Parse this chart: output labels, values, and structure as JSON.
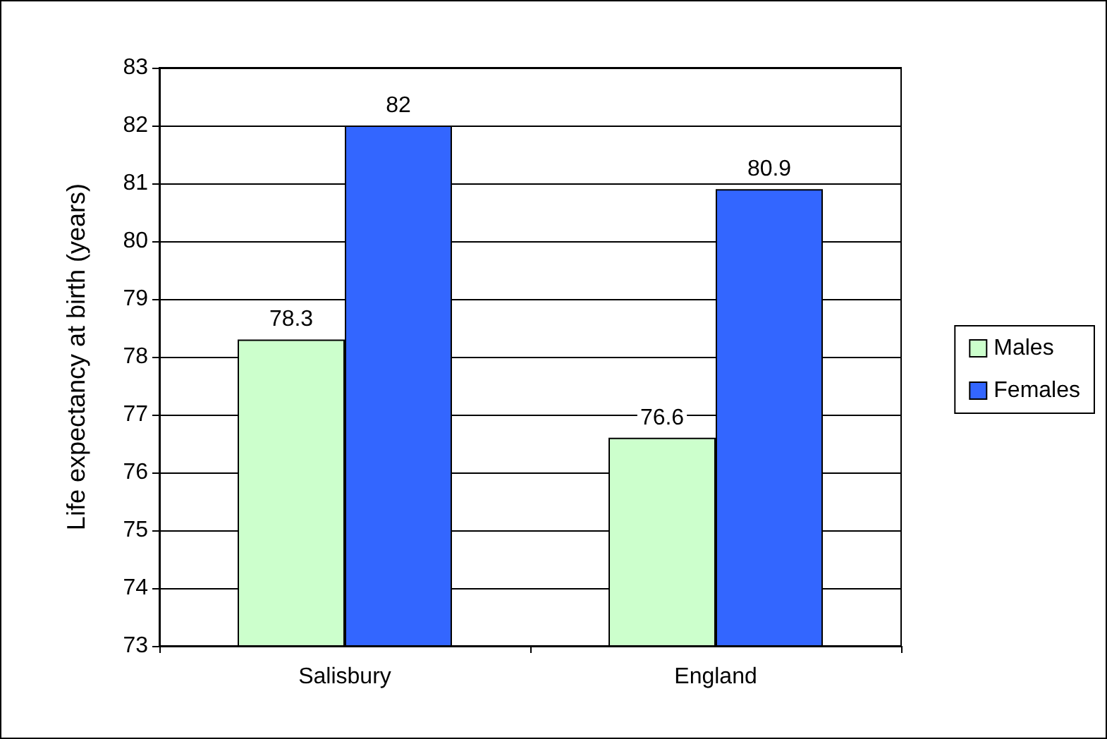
{
  "chart_data": {
    "type": "bar",
    "ylabel": "Life expectancy at birth (years)",
    "categories": [
      "Salisbury",
      "England"
    ],
    "series": [
      {
        "name": "Males",
        "color": "#ccffcc",
        "values": [
          78.3,
          76.6
        ]
      },
      {
        "name": "Females",
        "color": "#3366ff",
        "values": [
          82,
          80.9
        ]
      }
    ],
    "ylim": [
      73,
      83
    ],
    "yticks": [
      73,
      74,
      75,
      76,
      77,
      78,
      79,
      80,
      81,
      82,
      83
    ],
    "grid": "y",
    "legend": "right",
    "data_labels": true
  }
}
